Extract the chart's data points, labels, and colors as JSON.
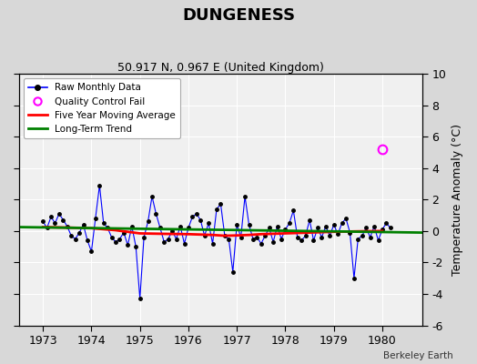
{
  "title": "DUNGENESS",
  "subtitle": "50.917 N, 0.967 E (United Kingdom)",
  "ylabel": "Temperature Anomaly (°C)",
  "watermark": "Berkeley Earth",
  "ylim": [
    -6,
    10
  ],
  "xlim": [
    1972.5,
    1980.83
  ],
  "xticks": [
    1973,
    1974,
    1975,
    1976,
    1977,
    1978,
    1979,
    1980
  ],
  "yticks": [
    -6,
    -4,
    -2,
    0,
    2,
    4,
    6,
    8,
    10
  ],
  "raw_data": [
    [
      1973.0,
      0.6
    ],
    [
      1973.083,
      0.2
    ],
    [
      1973.167,
      0.9
    ],
    [
      1973.25,
      0.5
    ],
    [
      1973.333,
      1.1
    ],
    [
      1973.417,
      0.7
    ],
    [
      1973.5,
      0.3
    ],
    [
      1973.583,
      -0.3
    ],
    [
      1973.667,
      -0.5
    ],
    [
      1973.75,
      -0.1
    ],
    [
      1973.833,
      0.4
    ],
    [
      1973.917,
      -0.6
    ],
    [
      1974.0,
      -1.3
    ],
    [
      1974.083,
      0.8
    ],
    [
      1974.167,
      2.9
    ],
    [
      1974.25,
      0.5
    ],
    [
      1974.333,
      0.2
    ],
    [
      1974.417,
      -0.4
    ],
    [
      1974.5,
      -0.7
    ],
    [
      1974.583,
      -0.5
    ],
    [
      1974.667,
      -0.1
    ],
    [
      1974.75,
      -0.9
    ],
    [
      1974.833,
      0.3
    ],
    [
      1974.917,
      -1.0
    ],
    [
      1975.0,
      -4.3
    ],
    [
      1975.083,
      -0.4
    ],
    [
      1975.167,
      0.6
    ],
    [
      1975.25,
      2.2
    ],
    [
      1975.333,
      1.1
    ],
    [
      1975.417,
      0.2
    ],
    [
      1975.5,
      -0.7
    ],
    [
      1975.583,
      -0.5
    ],
    [
      1975.667,
      0.0
    ],
    [
      1975.75,
      -0.5
    ],
    [
      1975.833,
      0.3
    ],
    [
      1975.917,
      -0.8
    ],
    [
      1976.0,
      0.2
    ],
    [
      1976.083,
      0.9
    ],
    [
      1976.167,
      1.1
    ],
    [
      1976.25,
      0.7
    ],
    [
      1976.333,
      -0.3
    ],
    [
      1976.417,
      0.5
    ],
    [
      1976.5,
      -0.8
    ],
    [
      1976.583,
      1.4
    ],
    [
      1976.667,
      1.7
    ],
    [
      1976.75,
      -0.3
    ],
    [
      1976.833,
      -0.5
    ],
    [
      1976.917,
      -2.6
    ],
    [
      1977.0,
      0.4
    ],
    [
      1977.083,
      -0.4
    ],
    [
      1977.167,
      2.2
    ],
    [
      1977.25,
      0.4
    ],
    [
      1977.333,
      -0.5
    ],
    [
      1977.417,
      -0.4
    ],
    [
      1977.5,
      -0.8
    ],
    [
      1977.583,
      -0.3
    ],
    [
      1977.667,
      0.2
    ],
    [
      1977.75,
      -0.7
    ],
    [
      1977.833,
      0.3
    ],
    [
      1977.917,
      -0.5
    ],
    [
      1978.0,
      0.1
    ],
    [
      1978.083,
      0.5
    ],
    [
      1978.167,
      1.3
    ],
    [
      1978.25,
      -0.4
    ],
    [
      1978.333,
      -0.6
    ],
    [
      1978.417,
      -0.3
    ],
    [
      1978.5,
      0.7
    ],
    [
      1978.583,
      -0.6
    ],
    [
      1978.667,
      0.2
    ],
    [
      1978.75,
      -0.4
    ],
    [
      1978.833,
      0.3
    ],
    [
      1978.917,
      -0.3
    ],
    [
      1979.0,
      0.4
    ],
    [
      1979.083,
      -0.2
    ],
    [
      1979.167,
      0.5
    ],
    [
      1979.25,
      0.8
    ],
    [
      1979.333,
      -0.1
    ],
    [
      1979.417,
      -3.0
    ],
    [
      1979.5,
      -0.5
    ],
    [
      1979.583,
      -0.3
    ],
    [
      1979.667,
      0.2
    ],
    [
      1979.75,
      -0.4
    ],
    [
      1979.833,
      0.3
    ],
    [
      1979.917,
      -0.6
    ],
    [
      1980.0,
      0.1
    ],
    [
      1980.083,
      0.5
    ],
    [
      1980.167,
      0.2
    ]
  ],
  "qc_fail": [
    [
      1980.0,
      5.2
    ]
  ],
  "moving_avg": [
    [
      1973.0,
      0.25
    ],
    [
      1973.5,
      0.22
    ],
    [
      1974.0,
      0.18
    ],
    [
      1974.5,
      0.05
    ],
    [
      1975.0,
      -0.15
    ],
    [
      1975.5,
      -0.18
    ],
    [
      1976.0,
      -0.2
    ],
    [
      1976.5,
      -0.25
    ],
    [
      1976.75,
      -0.3
    ],
    [
      1977.0,
      -0.28
    ],
    [
      1977.25,
      -0.25
    ],
    [
      1977.5,
      -0.2
    ],
    [
      1978.0,
      -0.15
    ],
    [
      1978.5,
      -0.1
    ],
    [
      1979.0,
      -0.05
    ],
    [
      1979.5,
      -0.02
    ],
    [
      1980.0,
      0.0
    ]
  ],
  "trend_x": [
    1972.5,
    1980.83
  ],
  "trend_y": [
    0.25,
    -0.1
  ],
  "bg_color": "#d8d8d8",
  "plot_bg_color": "#f0f0f0",
  "raw_line_color": "blue",
  "raw_marker_color": "black",
  "moving_avg_color": "red",
  "trend_color": "green",
  "qc_fail_color": "magenta"
}
